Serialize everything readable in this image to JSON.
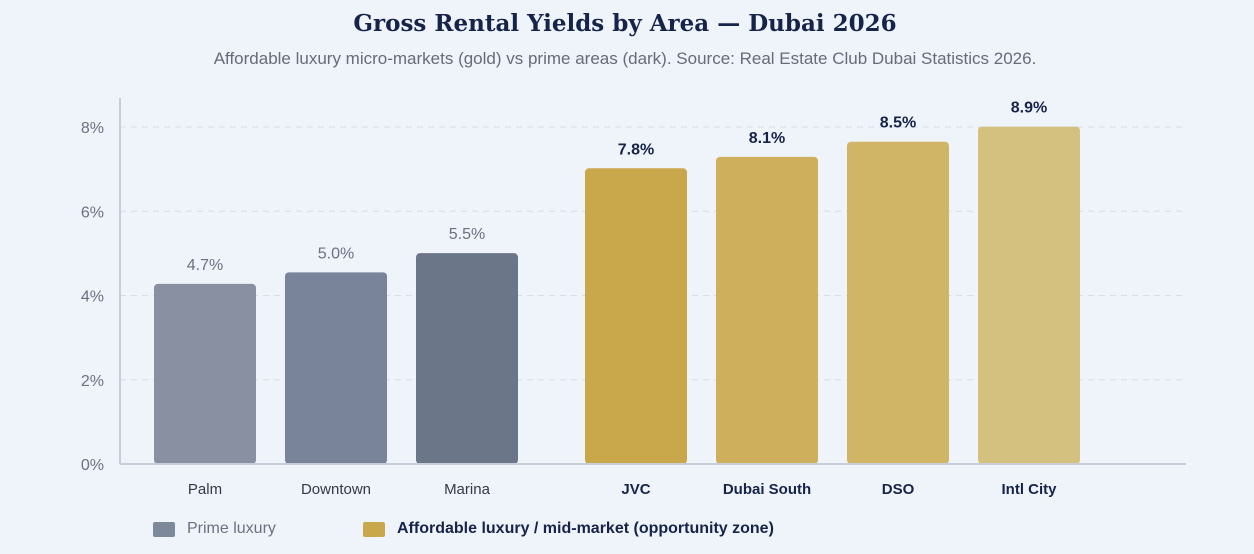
{
  "chart_data": {
    "type": "bar",
    "title": "Gross Rental Yields by Area — Dubai 2026",
    "subtitle": "Affordable luxury micro-markets (gold) vs prime areas (dark). Source: Real Estate Club Dubai Statistics 2026.",
    "categories": [
      "Palm",
      "Downtown",
      "Marina",
      "JVC",
      "Dubai South",
      "DSO",
      "Intl City"
    ],
    "values": [
      4.7,
      5.0,
      5.5,
      7.8,
      8.1,
      8.5,
      8.9
    ],
    "value_labels": [
      "4.7%",
      "5.0%",
      "5.5%",
      "7.8%",
      "8.1%",
      "8.5%",
      "8.9%"
    ],
    "groups": [
      "prime",
      "prime",
      "prime",
      "affordable",
      "affordable",
      "affordable",
      "affordable"
    ],
    "colors": [
      "#8890a2",
      "#79849a",
      "#6b7689",
      "#c8a84a",
      "#cdaf5c",
      "#d0b567",
      "#d4c17f"
    ],
    "yticks": [
      "0%",
      "2%",
      "4%",
      "6%",
      "8%"
    ],
    "ylim": [
      0,
      8
    ],
    "grid": true,
    "legend_position": "bottom-left",
    "legend": [
      {
        "label": "Prime luxury",
        "color": "#7e889b"
      },
      {
        "label": "Affordable luxury / mid-market (opportunity zone)",
        "color": "#c8a84a"
      }
    ]
  }
}
